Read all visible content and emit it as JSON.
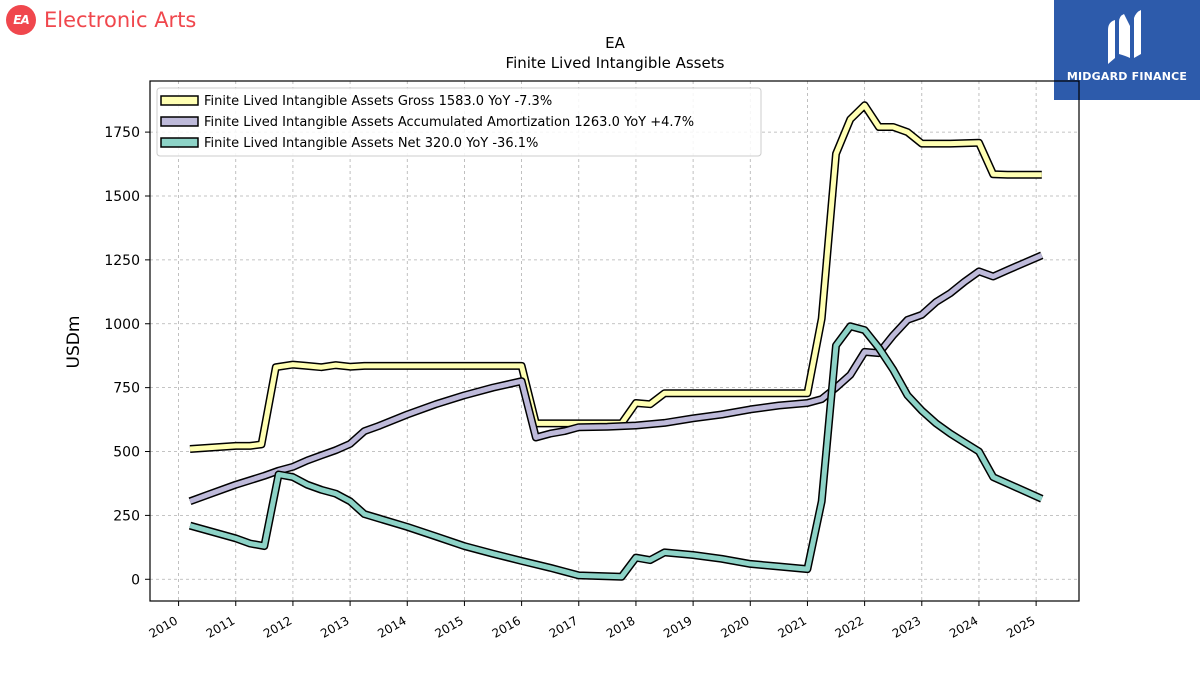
{
  "brand": {
    "company": "Electronic Arts",
    "logo_text": "EA",
    "partner": "MIDGARD FINANCE"
  },
  "colors": {
    "gross": "#ffffb3",
    "amortization": "#bebada",
    "net": "#8dd3c7",
    "brand_red": "#f0474d",
    "partner_blue": "#2d5bab"
  },
  "chart_data": {
    "type": "line",
    "title": "EA",
    "subtitle": "Finite Lived Intangible Assets",
    "ylabel": "USDm",
    "xlabel": "",
    "xlim": [
      2009.5,
      2025.75
    ],
    "ylim": [
      -85,
      1950
    ],
    "yticks": [
      0,
      250,
      500,
      750,
      1000,
      1250,
      1500,
      1750
    ],
    "xticks": [
      "2010",
      "2011",
      "2012",
      "2013",
      "2014",
      "2015",
      "2016",
      "2017",
      "2018",
      "2019",
      "2020",
      "2021",
      "2022",
      "2023",
      "2024",
      "2025"
    ],
    "grid": true,
    "legend_position": "top-left",
    "series": [
      {
        "key": "gross",
        "name": "Finite Lived Intangible Assets Gross  1583.0 YoY -7.3%",
        "points": [
          [
            2010.2,
            510
          ],
          [
            2011.0,
            522
          ],
          [
            2011.25,
            522
          ],
          [
            2011.45,
            528
          ],
          [
            2011.7,
            830
          ],
          [
            2012.0,
            840
          ],
          [
            2012.25,
            835
          ],
          [
            2012.5,
            830
          ],
          [
            2012.75,
            838
          ],
          [
            2013.0,
            832
          ],
          [
            2013.25,
            835
          ],
          [
            2014.0,
            835
          ],
          [
            2015.0,
            835
          ],
          [
            2016.0,
            835
          ],
          [
            2016.25,
            610
          ],
          [
            2016.5,
            610
          ],
          [
            2017.0,
            610
          ],
          [
            2017.75,
            610
          ],
          [
            2018.0,
            690
          ],
          [
            2018.25,
            685
          ],
          [
            2018.5,
            728
          ],
          [
            2019.0,
            728
          ],
          [
            2020.0,
            728
          ],
          [
            2021.0,
            728
          ],
          [
            2021.25,
            1020
          ],
          [
            2021.5,
            1665
          ],
          [
            2021.75,
            1800
          ],
          [
            2022.0,
            1855
          ],
          [
            2022.25,
            1770
          ],
          [
            2022.5,
            1770
          ],
          [
            2022.75,
            1750
          ],
          [
            2023.0,
            1705
          ],
          [
            2023.5,
            1705
          ],
          [
            2024.0,
            1708
          ],
          [
            2024.25,
            1585
          ],
          [
            2024.5,
            1583
          ],
          [
            2025.0,
            1583
          ],
          [
            2025.1,
            1583
          ]
        ]
      },
      {
        "key": "amortization",
        "name": "Finite Lived Intangible Assets Accumulated Amortization  1263.0 YoY +4.7%",
        "points": [
          [
            2010.2,
            305
          ],
          [
            2010.5,
            330
          ],
          [
            2011.0,
            370
          ],
          [
            2011.5,
            405
          ],
          [
            2011.75,
            425
          ],
          [
            2012.0,
            440
          ],
          [
            2012.25,
            465
          ],
          [
            2012.5,
            485
          ],
          [
            2012.75,
            505
          ],
          [
            2013.0,
            530
          ],
          [
            2013.25,
            580
          ],
          [
            2013.5,
            600
          ],
          [
            2014.0,
            645
          ],
          [
            2014.5,
            685
          ],
          [
            2015.0,
            720
          ],
          [
            2015.5,
            750
          ],
          [
            2016.0,
            775
          ],
          [
            2016.25,
            555
          ],
          [
            2016.5,
            570
          ],
          [
            2016.75,
            580
          ],
          [
            2017.0,
            595
          ],
          [
            2017.5,
            597
          ],
          [
            2018.0,
            602
          ],
          [
            2018.5,
            612
          ],
          [
            2019.0,
            630
          ],
          [
            2019.5,
            645
          ],
          [
            2020.0,
            665
          ],
          [
            2020.5,
            680
          ],
          [
            2021.0,
            690
          ],
          [
            2021.25,
            705
          ],
          [
            2021.5,
            750
          ],
          [
            2021.75,
            800
          ],
          [
            2022.0,
            890
          ],
          [
            2022.25,
            885
          ],
          [
            2022.5,
            955
          ],
          [
            2022.75,
            1015
          ],
          [
            2023.0,
            1035
          ],
          [
            2023.25,
            1085
          ],
          [
            2023.5,
            1120
          ],
          [
            2023.75,
            1165
          ],
          [
            2024.0,
            1205
          ],
          [
            2024.25,
            1185
          ],
          [
            2024.5,
            1210
          ],
          [
            2025.1,
            1268
          ]
        ]
      },
      {
        "key": "net",
        "name": "Finite Lived Intangible Assets Net  320.0 YoY -36.1%",
        "points": [
          [
            2010.2,
            210
          ],
          [
            2011.0,
            160
          ],
          [
            2011.25,
            140
          ],
          [
            2011.5,
            130
          ],
          [
            2011.75,
            410
          ],
          [
            2012.0,
            400
          ],
          [
            2012.25,
            370
          ],
          [
            2012.5,
            350
          ],
          [
            2012.75,
            335
          ],
          [
            2013.0,
            305
          ],
          [
            2013.25,
            255
          ],
          [
            2014.0,
            205
          ],
          [
            2014.5,
            168
          ],
          [
            2015.0,
            130
          ],
          [
            2015.5,
            100
          ],
          [
            2016.0,
            72
          ],
          [
            2016.5,
            45
          ],
          [
            2016.75,
            30
          ],
          [
            2017.0,
            15
          ],
          [
            2017.75,
            10
          ],
          [
            2018.0,
            85
          ],
          [
            2018.25,
            75
          ],
          [
            2018.5,
            105
          ],
          [
            2019.0,
            95
          ],
          [
            2019.5,
            80
          ],
          [
            2020.0,
            60
          ],
          [
            2020.5,
            50
          ],
          [
            2021.0,
            40
          ],
          [
            2021.25,
            305
          ],
          [
            2021.5,
            915
          ],
          [
            2021.75,
            990
          ],
          [
            2022.0,
            975
          ],
          [
            2022.25,
            905
          ],
          [
            2022.5,
            820
          ],
          [
            2022.75,
            720
          ],
          [
            2023.0,
            660
          ],
          [
            2023.25,
            610
          ],
          [
            2023.5,
            570
          ],
          [
            2023.75,
            535
          ],
          [
            2024.0,
            500
          ],
          [
            2024.25,
            400
          ],
          [
            2024.5,
            375
          ],
          [
            2025.1,
            315
          ]
        ]
      }
    ]
  }
}
